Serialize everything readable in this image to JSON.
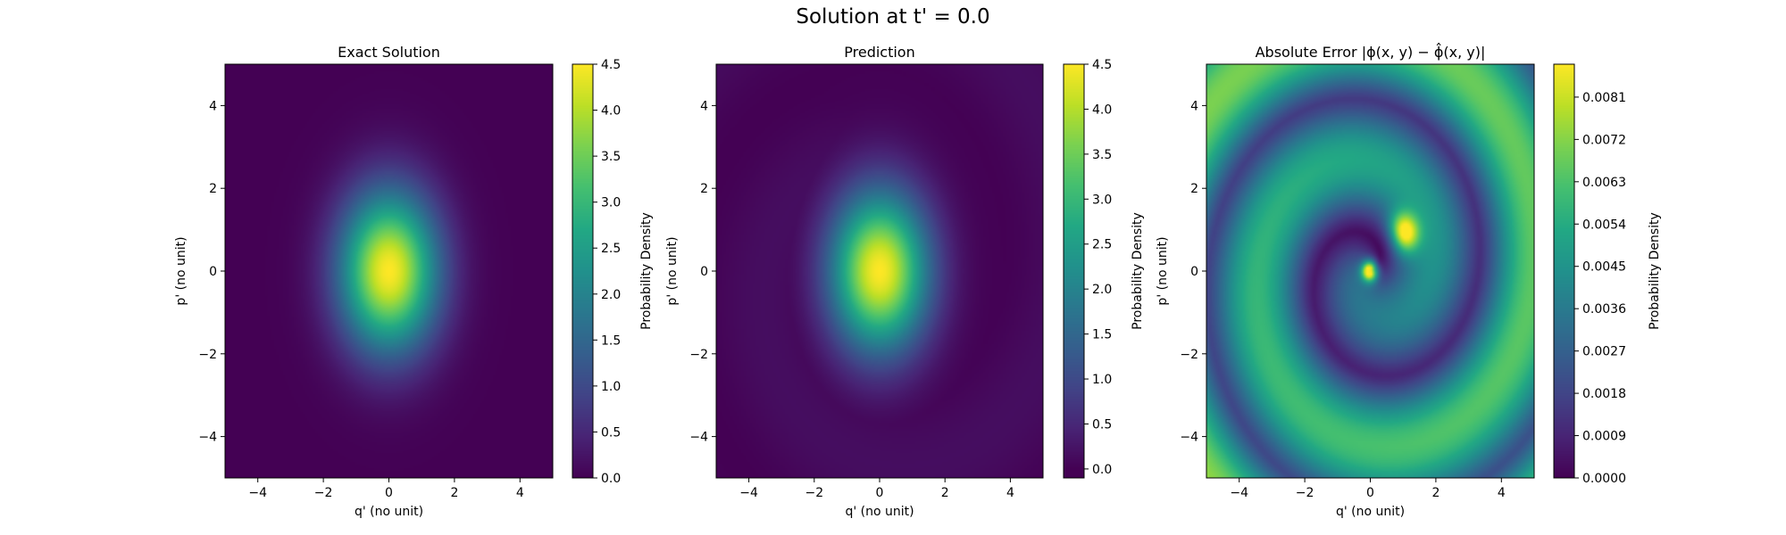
{
  "figure": {
    "suptitle": "Solution at t' = 0.0"
  },
  "chart_data": [
    {
      "type": "heatmap",
      "title": "Exact Solution",
      "xlabel": "q' (no unit)",
      "ylabel": "p' (no unit)",
      "xlim": [
        -5,
        5
      ],
      "ylim": [
        -5,
        5
      ],
      "xticks": [
        -4,
        -2,
        0,
        2,
        4
      ],
      "yticks": [
        -4,
        -2,
        0,
        2,
        4
      ],
      "xtick_labels": [
        "−4",
        "−2",
        "0",
        "2",
        "4"
      ],
      "ytick_labels": [
        "−4",
        "−2",
        "0",
        "2",
        "4"
      ],
      "colormap": "viridis",
      "field": "gaussian centered at (0, 0), peak ~4.5, wider in p' than q'",
      "colorbar": {
        "label": "Probability Density",
        "range": [
          0,
          4.5
        ],
        "ticks": [
          0.0,
          0.5,
          1.0,
          1.5,
          2.0,
          2.5,
          3.0,
          3.5,
          4.0,
          4.5
        ],
        "tick_labels": [
          "0.0",
          "0.5",
          "1.0",
          "1.5",
          "2.0",
          "2.5",
          "3.0",
          "3.5",
          "4.0",
          "4.5"
        ]
      }
    },
    {
      "type": "heatmap",
      "title": "Prediction",
      "xlabel": "q' (no unit)",
      "ylabel": "p' (no unit)",
      "xlim": [
        -5,
        5
      ],
      "ylim": [
        -5,
        5
      ],
      "xticks": [
        -4,
        -2,
        0,
        2,
        4
      ],
      "yticks": [
        -4,
        -2,
        0,
        2,
        4
      ],
      "xtick_labels": [
        "−4",
        "−2",
        "0",
        "2",
        "4"
      ],
      "ytick_labels": [
        "−4",
        "−2",
        "0",
        "2",
        "4"
      ],
      "colormap": "viridis",
      "field": "gaussian centered at (0, 0), peak ~4.5, faint spiral background",
      "colorbar": {
        "label": "Probability Density",
        "range": [
          -0.1,
          4.5
        ],
        "ticks": [
          0.0,
          0.5,
          1.0,
          1.5,
          2.0,
          2.5,
          3.0,
          3.5,
          4.0,
          4.5
        ],
        "tick_labels": [
          "0.0",
          "0.5",
          "1.0",
          "1.5",
          "2.0",
          "2.5",
          "3.0",
          "3.5",
          "4.0",
          "4.5"
        ]
      }
    },
    {
      "type": "heatmap",
      "title": "Absolute Error |ϕ(x, y) − ϕ̂(x, y)|",
      "xlabel": "q' (no unit)",
      "ylabel": "p' (no unit)",
      "xlim": [
        -5,
        5
      ],
      "ylim": [
        -5,
        5
      ],
      "xticks": [
        -4,
        -2,
        0,
        2,
        4
      ],
      "yticks": [
        -4,
        -2,
        0,
        2,
        4
      ],
      "xtick_labels": [
        "−4",
        "−2",
        "0",
        "2",
        "4"
      ],
      "ytick_labels": [
        "−4",
        "−2",
        "0",
        "2",
        "4"
      ],
      "colormap": "viridis",
      "field": "spiral error pattern, max ~0.0088 near (0, 0) and (1, 1)",
      "colorbar": {
        "label": "Probability Density",
        "range": [
          0,
          0.0088
        ],
        "ticks": [
          0.0,
          0.0009,
          0.0018,
          0.0027,
          0.0036,
          0.0045,
          0.0054,
          0.0063,
          0.0072,
          0.0081
        ],
        "tick_labels": [
          "0.0000",
          "0.0009",
          "0.0018",
          "0.0027",
          "0.0036",
          "0.0045",
          "0.0054",
          "0.0063",
          "0.0072",
          "0.0081"
        ]
      }
    }
  ]
}
